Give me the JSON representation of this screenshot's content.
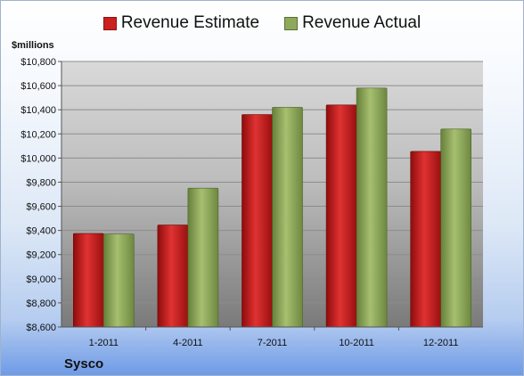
{
  "chart_data": {
    "type": "bar",
    "title": "",
    "unit_label": "$millions",
    "company": "Sysco",
    "categories": [
      "1-2011",
      "4-2011",
      "7-2011",
      "10-2011",
      "12-2011"
    ],
    "series": [
      {
        "name": "Revenue Estimate",
        "color": "#cc1f1f",
        "values": [
          9375,
          9445,
          10360,
          10440,
          10055
        ]
      },
      {
        "name": "Revenue Actual",
        "color": "#8fa95a",
        "values": [
          9370,
          9750,
          10420,
          10580,
          10240
        ]
      }
    ],
    "ylim": [
      8600,
      10800
    ],
    "yticks": [
      "$8,600",
      "$8,800",
      "$9,000",
      "$9,200",
      "$9,400",
      "$9,600",
      "$9,800",
      "$10,000",
      "$10,200",
      "$10,400",
      "$10,600",
      "$10,800"
    ],
    "ytick_values": [
      8600,
      8800,
      9000,
      9200,
      9400,
      9600,
      9800,
      10000,
      10200,
      10400,
      10600,
      10800
    ],
    "grid": true,
    "legend_position": "top"
  }
}
